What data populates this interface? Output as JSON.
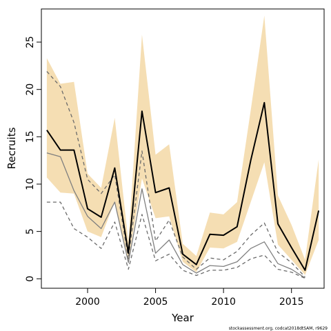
{
  "chart_data": {
    "type": "line",
    "title": "",
    "xlabel": "Year",
    "ylabel": "Recruits",
    "xlim": [
      1996.6,
      2017.4
    ],
    "ylim": [
      -1,
      28.5
    ],
    "x_ticks": [
      2000,
      2005,
      2010,
      2015
    ],
    "y_ticks": [
      0,
      5,
      10,
      15,
      20,
      25
    ],
    "grid": false,
    "legend": "none",
    "years": [
      1997,
      1998,
      1999,
      2000,
      2001,
      2002,
      2003,
      2004,
      2005,
      2006,
      2007,
      2008,
      2009,
      2010,
      2011,
      2012,
      2013,
      2014,
      2015,
      2016,
      2017
    ],
    "ci_band": {
      "color": "#F5DEB3",
      "lower": [
        10.7,
        9.1,
        9.0,
        5.0,
        4.4,
        8.2,
        1.9,
        10.6,
        6.4,
        6.6,
        1.8,
        0.7,
        3.3,
        3.2,
        3.9,
        8.1,
        12.3,
        3.6,
        2.0,
        0.4,
        4.1
      ],
      "upper": [
        23.3,
        20.6,
        20.8,
        11.1,
        9.6,
        17.0,
        3.9,
        25.8,
        13.1,
        14.2,
        3.7,
        2.4,
        7.0,
        6.8,
        8.1,
        17.8,
        27.8,
        8.8,
        5.7,
        2.0,
        12.6
      ]
    },
    "series": [
      {
        "values": [
          15.7,
          13.6,
          13.6,
          7.4,
          6.5,
          11.7,
          2.7,
          17.7,
          9.1,
          9.6,
          2.6,
          1.5,
          4.7,
          4.6,
          5.5,
          12.5,
          18.6,
          5.8,
          3.3,
          0.9,
          7.2
        ],
        "color": "#000000",
        "dash": "solid",
        "width": 2
      },
      {
        "values": [
          13.3,
          12.9,
          9.3,
          6.6,
          5.3,
          8.1,
          1.7,
          9.5,
          2.7,
          4.1,
          1.5,
          0.6,
          1.4,
          1.3,
          1.8,
          3.2,
          3.9,
          1.6,
          1.0,
          0.1
        ],
        "color": "#7f7f7f",
        "dash": "solid",
        "width": 1.3
      },
      {
        "values": [
          21.9,
          20.3,
          16.5,
          10.5,
          9.0,
          11.0,
          2.1,
          13.5,
          4.0,
          6.2,
          2.3,
          1.0,
          2.2,
          2.0,
          2.9,
          4.6,
          5.9,
          2.8,
          1.7,
          0.2
        ],
        "color": "#6a6a6a",
        "dash": "5,4",
        "width": 1.3
      },
      {
        "values": [
          8.1,
          8.1,
          5.3,
          4.4,
          3.2,
          6.0,
          1.0,
          6.8,
          1.9,
          2.6,
          0.9,
          0.35,
          0.9,
          0.9,
          1.2,
          2.1,
          2.5,
          1.0,
          0.7,
          0.05
        ],
        "color": "#6a6a6a",
        "dash": "5,4",
        "width": 1.3
      }
    ],
    "footer": "stockassessment.org, codcat2018dtSAM, r9629"
  }
}
